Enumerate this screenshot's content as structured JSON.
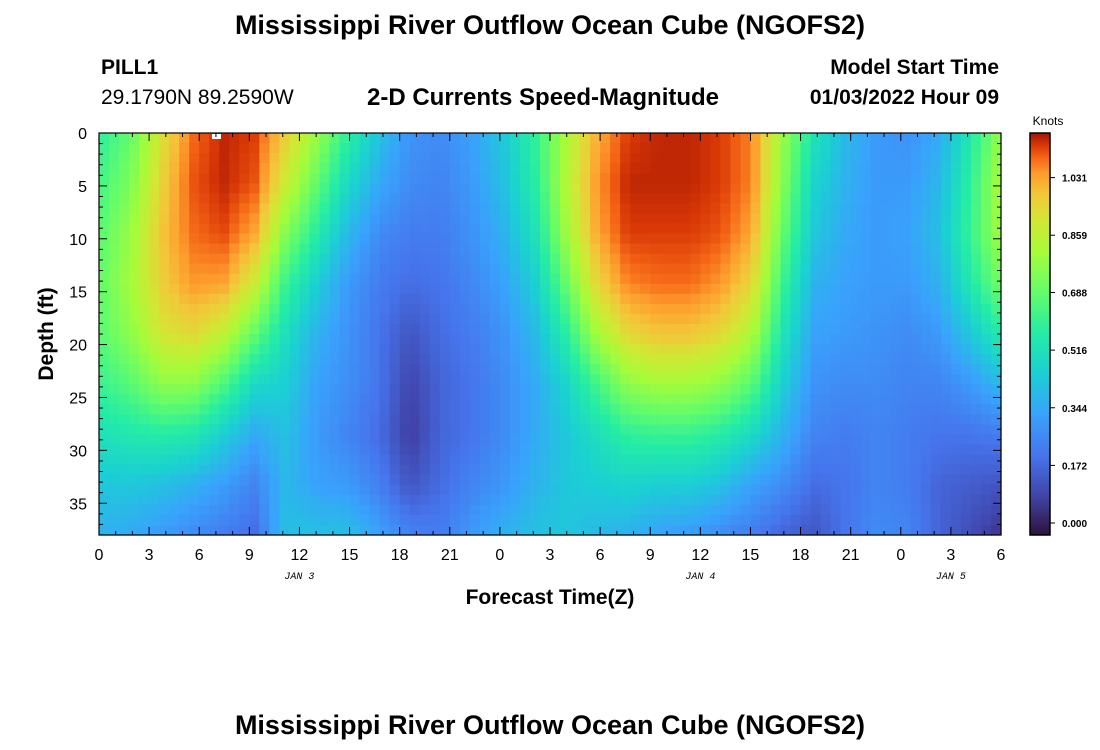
{
  "header": {
    "title": "Mississippi River Outflow Ocean Cube (NGOFS2)",
    "station": "PILL1",
    "coords": "29.1790N  89.2590W",
    "subtitle": "2-D Currents Speed-Magnitude",
    "start_label": "Model Start Time",
    "start_value": "01/03/2022 Hour 09"
  },
  "footer": {
    "title": "Mississippi River Outflow Ocean Cube (NGOFS2)"
  },
  "chart_data": {
    "type": "heatmap",
    "title": "2-D Currents Speed-Magnitude",
    "xlabel": "Forecast Time(Z)",
    "ylabel": "Depth (ft)",
    "x_ticks": [
      "0",
      "3",
      "6",
      "9",
      "12",
      "15",
      "18",
      "21",
      "0",
      "3",
      "6",
      "9",
      "12",
      "15",
      "18",
      "21",
      "0",
      "3",
      "6"
    ],
    "date_labels": [
      {
        "label": "JAN 3",
        "hours_from_start": 12
      },
      {
        "label": "JAN 4",
        "hours_from_start": 36
      },
      {
        "label": "JAN 5",
        "hours_from_start": 51
      }
    ],
    "xlim_hours": [
      0,
      54
    ],
    "y_ticks": [
      0,
      5,
      10,
      15,
      20,
      25,
      30,
      35
    ],
    "ylim": [
      0,
      38
    ],
    "y_inverted": true,
    "colorbar": {
      "unit_label": "Knots",
      "ticks": [
        "1.031",
        "0.859",
        "0.688",
        "0.516",
        "0.344",
        "0.172",
        "0.000"
      ],
      "range": [
        0.0,
        1.2
      ],
      "colormap": "turbo"
    },
    "speed_knots": [
      [
        0.62,
        0.66,
        0.7,
        0.72,
        0.7,
        0.64,
        0.55,
        0.46,
        0.4
      ],
      [
        0.72,
        0.77,
        0.82,
        0.84,
        0.8,
        0.7,
        0.58,
        0.46,
        0.38
      ],
      [
        0.95,
        0.99,
        1.02,
        1.0,
        0.94,
        0.8,
        0.6,
        0.44,
        0.34
      ],
      [
        1.12,
        1.14,
        1.12,
        1.08,
        0.98,
        0.8,
        0.58,
        0.4,
        0.3
      ],
      [
        1.18,
        1.18,
        1.15,
        1.07,
        0.9,
        0.68,
        0.48,
        0.35,
        0.26
      ],
      [
        1.16,
        1.14,
        1.06,
        0.92,
        0.72,
        0.52,
        0.38,
        0.28,
        0.22
      ],
      [
        1.0,
        0.92,
        0.78,
        0.64,
        0.54,
        0.48,
        0.44,
        0.42,
        0.44
      ],
      [
        0.82,
        0.72,
        0.6,
        0.48,
        0.4,
        0.36,
        0.34,
        0.36,
        0.44
      ],
      [
        0.62,
        0.52,
        0.42,
        0.34,
        0.32,
        0.31,
        0.28,
        0.34,
        0.44
      ],
      [
        0.45,
        0.38,
        0.3,
        0.26,
        0.24,
        0.24,
        0.22,
        0.27,
        0.36
      ],
      [
        0.32,
        0.3,
        0.26,
        0.22,
        0.16,
        0.12,
        0.1,
        0.16,
        0.28
      ],
      [
        0.3,
        0.28,
        0.26,
        0.24,
        0.22,
        0.2,
        0.2,
        0.22,
        0.26
      ],
      [
        0.36,
        0.34,
        0.32,
        0.29,
        0.26,
        0.24,
        0.24,
        0.28,
        0.34
      ],
      [
        0.46,
        0.44,
        0.4,
        0.36,
        0.32,
        0.3,
        0.3,
        0.33,
        0.4
      ],
      [
        0.62,
        0.6,
        0.55,
        0.48,
        0.42,
        0.38,
        0.38,
        0.4,
        0.44
      ],
      [
        0.85,
        0.86,
        0.82,
        0.72,
        0.6,
        0.5,
        0.46,
        0.46,
        0.46
      ],
      [
        1.05,
        1.08,
        1.06,
        0.98,
        0.84,
        0.66,
        0.54,
        0.48,
        0.42
      ],
      [
        1.16,
        1.18,
        1.16,
        1.1,
        0.98,
        0.8,
        0.62,
        0.5,
        0.4
      ],
      [
        1.18,
        1.18,
        1.16,
        1.12,
        1.02,
        0.84,
        0.64,
        0.48,
        0.36
      ],
      [
        1.18,
        1.18,
        1.16,
        1.12,
        1.02,
        0.84,
        0.64,
        0.48,
        0.34
      ],
      [
        1.16,
        1.16,
        1.14,
        1.08,
        0.98,
        0.8,
        0.6,
        0.44,
        0.3
      ],
      [
        1.1,
        1.1,
        1.06,
        0.98,
        0.86,
        0.7,
        0.52,
        0.36,
        0.26
      ],
      [
        0.82,
        0.78,
        0.72,
        0.64,
        0.56,
        0.48,
        0.4,
        0.3,
        0.2
      ],
      [
        0.56,
        0.5,
        0.46,
        0.4,
        0.36,
        0.32,
        0.28,
        0.22,
        0.16
      ],
      [
        0.42,
        0.4,
        0.38,
        0.36,
        0.34,
        0.3,
        0.26,
        0.24,
        0.24
      ],
      [
        0.34,
        0.34,
        0.34,
        0.34,
        0.32,
        0.3,
        0.28,
        0.28,
        0.3
      ],
      [
        0.32,
        0.34,
        0.36,
        0.34,
        0.3,
        0.28,
        0.26,
        0.26,
        0.28
      ],
      [
        0.38,
        0.42,
        0.44,
        0.4,
        0.34,
        0.28,
        0.24,
        0.2,
        0.2
      ],
      [
        0.58,
        0.62,
        0.64,
        0.58,
        0.46,
        0.34,
        0.24,
        0.18,
        0.14
      ],
      [
        0.82,
        0.86,
        0.84,
        0.76,
        0.6,
        0.42,
        0.26,
        0.16,
        0.08
      ]
    ]
  }
}
